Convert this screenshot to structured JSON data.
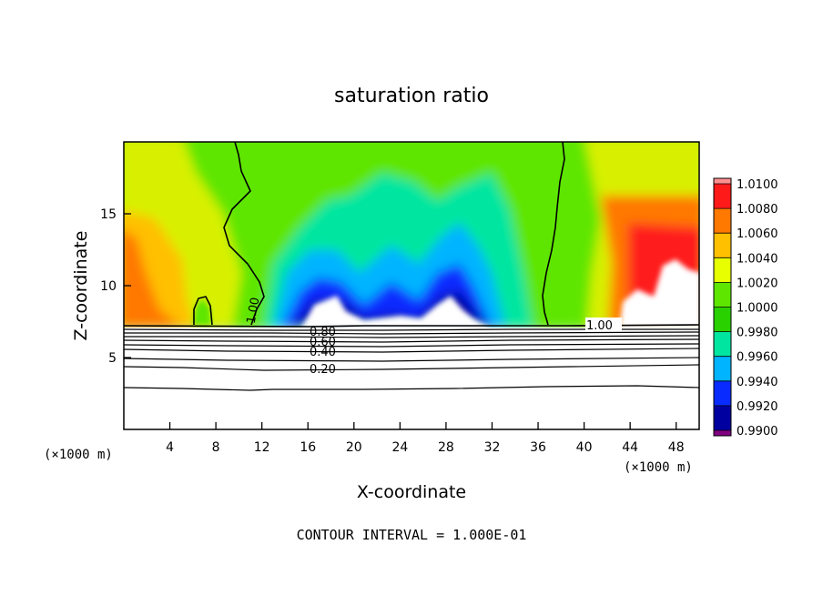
{
  "chart_data": {
    "type": "heatmap",
    "title": "saturation ratio",
    "xlabel": "X-coordinate",
    "ylabel": "Z-coordinate",
    "x_unit": "(×1000 m)",
    "y_unit": "(×1000 m)",
    "xlim": [
      0,
      50
    ],
    "ylim": [
      0,
      20
    ],
    "x_ticks": [
      "4",
      "8",
      "12",
      "16",
      "20",
      "24",
      "28",
      "32",
      "36",
      "40",
      "44",
      "48"
    ],
    "y_ticks": [
      "5",
      "10",
      "15"
    ],
    "footer": "CONTOUR INTERVAL = 1.000E-01",
    "colorbar": {
      "levels": [
        "1.0100",
        "1.0080",
        "1.0060",
        "1.0040",
        "1.0020",
        "1.0000",
        "0.9980",
        "0.9960",
        "0.9940",
        "0.9920",
        "0.9900"
      ],
      "colors": [
        "#ff9090",
        "#ff1a1a",
        "#ff7800",
        "#ffc000",
        "#e8ff00",
        "#5fe600",
        "#2ad100",
        "#00e6a0",
        "#00b4ff",
        "#0a2bff",
        "#0000a0",
        "#800080"
      ]
    },
    "contour_labels": [
      "1.00",
      "1.00",
      "0.80",
      "0.60",
      "0.40",
      "0.20"
    ],
    "contour_levels": [
      1.0,
      0.8,
      0.6,
      0.4,
      0.2
    ]
  }
}
